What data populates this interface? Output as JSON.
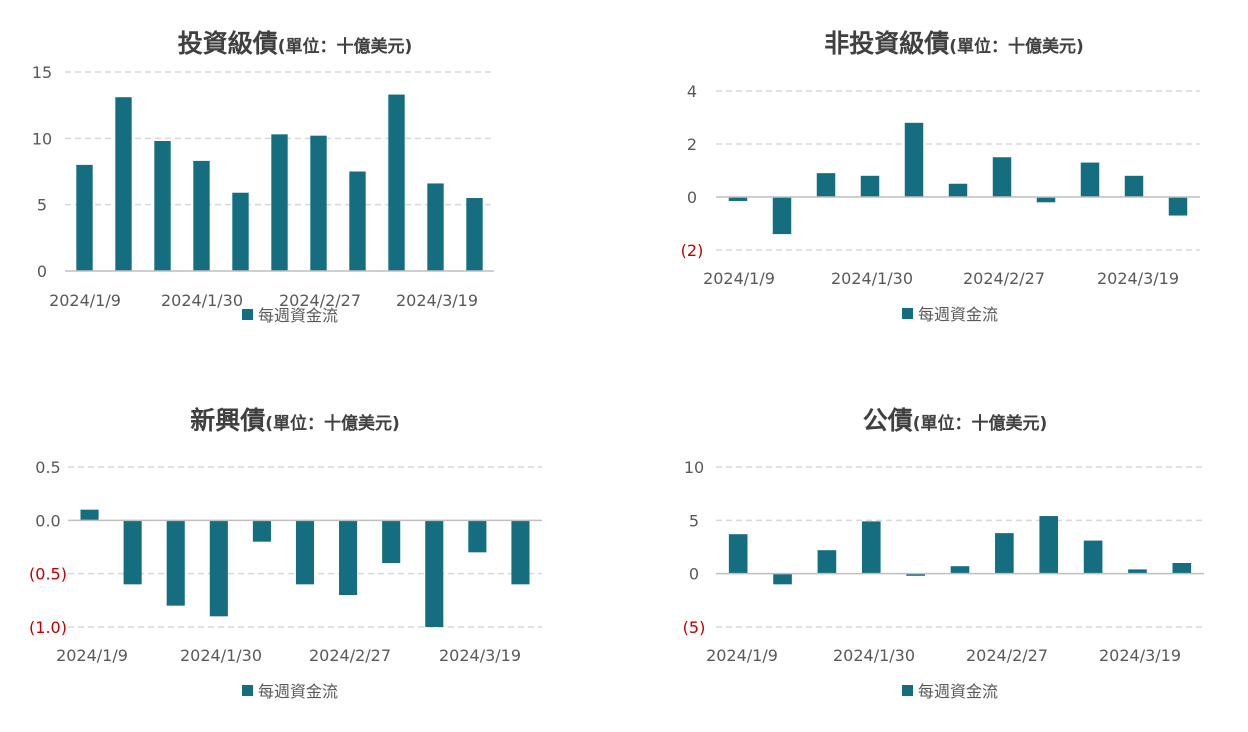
{
  "colors": {
    "bar": "#146e80",
    "negative_tick": "#c00000",
    "grid": "#d9d9d9",
    "axis": "#bfbfbf",
    "text": "#595959",
    "title": "#404040"
  },
  "chart_data": [
    {
      "type": "bar",
      "title": "投資級債",
      "subtitle": "(單位：十億美元)",
      "x_tick_labels": [
        "2024/1/9",
        "2024/1/30",
        "2024/2/27",
        "2024/3/19"
      ],
      "y_tick_labels": [
        "15",
        "10",
        "5",
        "0"
      ],
      "ylim": [
        0,
        15
      ],
      "grid": true,
      "legend": "bottom",
      "series": [
        {
          "name": "每週資金流",
          "values": [
            8.0,
            13.1,
            9.8,
            8.3,
            5.9,
            10.3,
            10.2,
            7.5,
            13.3,
            6.6,
            5.5
          ]
        }
      ]
    },
    {
      "type": "bar",
      "title": "非投資級債",
      "subtitle": "(單位：十億美元)",
      "x_tick_labels": [
        "2024/1/9",
        "2024/1/30",
        "2024/2/27",
        "2024/3/19"
      ],
      "y_tick_labels": [
        "4",
        "2",
        "0",
        "(2)"
      ],
      "ylim": [
        -2,
        4
      ],
      "grid": true,
      "legend": "bottom",
      "series": [
        {
          "name": "每週資金流",
          "values": [
            -0.15,
            -1.4,
            0.9,
            0.8,
            2.8,
            0.5,
            1.5,
            -0.2,
            1.3,
            0.8,
            -0.7
          ]
        }
      ]
    },
    {
      "type": "bar",
      "title": "新興債",
      "subtitle": "(單位：十億美元)",
      "x_tick_labels": [
        "2024/1/9",
        "2024/1/30",
        "2024/2/27",
        "2024/3/19"
      ],
      "y_tick_labels": [
        "0.5",
        "0.0",
        "(0.5)",
        "(1.0)"
      ],
      "ylim": [
        -1.0,
        0.5
      ],
      "grid": true,
      "legend": "bottom",
      "series": [
        {
          "name": "每週資金流",
          "values": [
            0.1,
            -0.6,
            -0.8,
            -0.9,
            -0.2,
            -0.6,
            -0.7,
            -0.4,
            -1.0,
            -0.3,
            -0.6
          ]
        }
      ]
    },
    {
      "type": "bar",
      "title": "公債",
      "subtitle": "(單位：十億美元)",
      "x_tick_labels": [
        "2024/1/9",
        "2024/1/30",
        "2024/2/27",
        "2024/3/19"
      ],
      "y_tick_labels": [
        "10",
        "5",
        "0",
        "(5)"
      ],
      "ylim": [
        -5,
        10
      ],
      "grid": true,
      "legend": "bottom",
      "series": [
        {
          "name": "每週資金流",
          "values": [
            3.7,
            -1.0,
            2.2,
            4.9,
            -0.2,
            0.7,
            3.8,
            5.4,
            3.1,
            0.4,
            1.0
          ]
        }
      ]
    }
  ]
}
